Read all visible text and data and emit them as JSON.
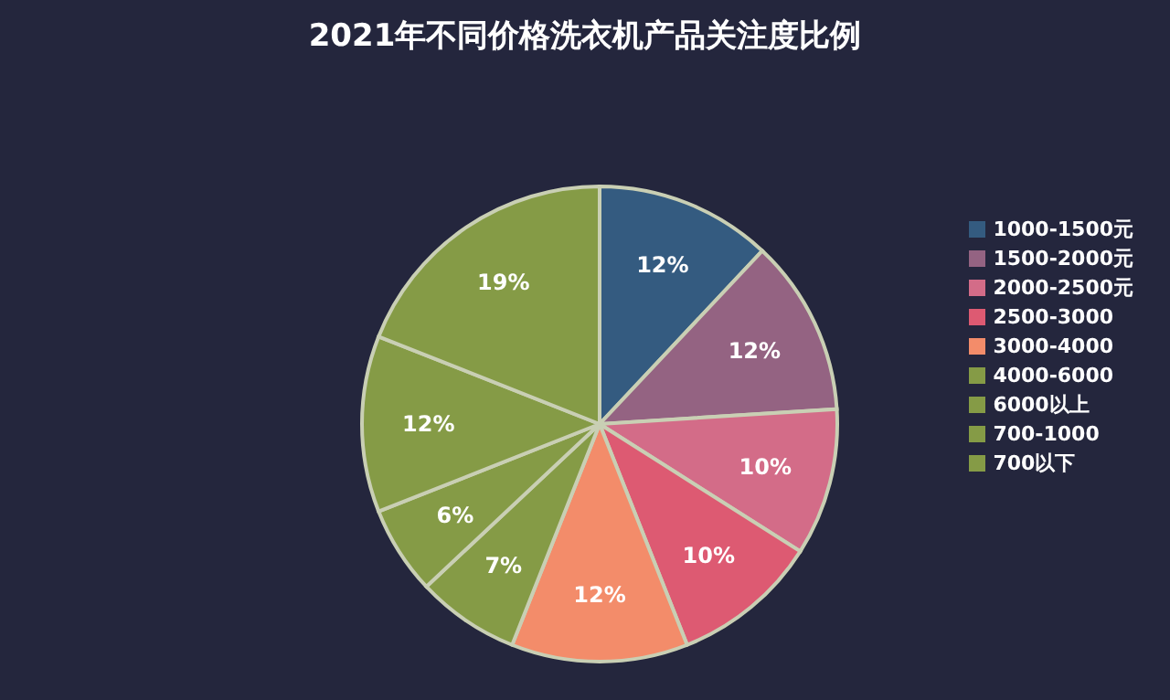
{
  "chart_data": {
    "type": "pie",
    "title": "2021年不同价格洗衣机产品关注度比例",
    "categories": [
      "1000-1500元",
      "1500-2000元",
      "2000-2500元",
      "2500-3000",
      "3000-4000",
      "4000-6000",
      "6000以上",
      "700-1000",
      "700以下"
    ],
    "values": [
      12,
      12,
      10,
      10,
      12,
      7,
      6,
      12,
      19
    ],
    "value_labels": [
      "12%",
      "12%",
      "10%",
      "10%",
      "12%",
      "7%",
      "6%",
      "12%",
      "19%"
    ],
    "colors": [
      "#345b80",
      "#946382",
      "#d36c88",
      "#dd5a72",
      "#f38c6a",
      "#859b46",
      "#859b46",
      "#859b46",
      "#859b46"
    ],
    "legend": "right"
  }
}
